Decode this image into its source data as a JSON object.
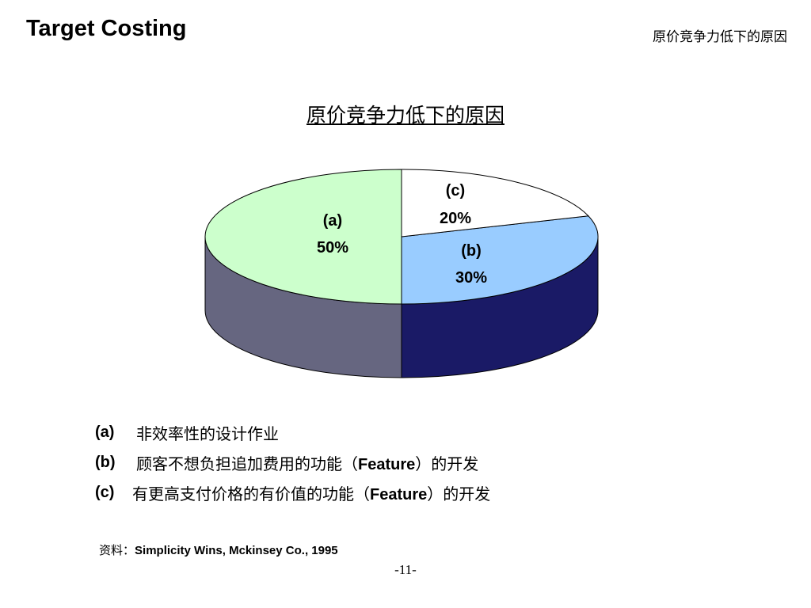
{
  "header": {
    "title": "Target Costing",
    "section": "原价竞争力低下的原因"
  },
  "chart_data": {
    "type": "pie",
    "title": "原价竞争力低下的原因",
    "slices": [
      {
        "label": "(a)",
        "value": 50,
        "value_label": "50%",
        "color": "#ccffcc",
        "side_color": "#666680"
      },
      {
        "label": "(b)",
        "value": 30,
        "value_label": "30%",
        "color": "#99ccff",
        "side_color": "#1a1a66"
      },
      {
        "label": "(c)",
        "value": 20,
        "value_label": "20%",
        "color": "#ffffff",
        "side_color": "#ffffff"
      }
    ]
  },
  "legend": [
    {
      "key": "(a)",
      "text": "非效率性的设计作业",
      "bold": "",
      "after": ""
    },
    {
      "key": "(b)",
      "text": "顾客不想负担追加费用的功能（",
      "bold": "Feature",
      "after": "）的开发"
    },
    {
      "key": "(c)",
      "text": "有更高支付价格的有价值的功能（",
      "bold": "Feature",
      "after": "）的开发"
    }
  ],
  "source": {
    "label": "资料：",
    "text": "Simplicity Wins, Mckinsey Co., 1995"
  },
  "page_number": "-11-"
}
